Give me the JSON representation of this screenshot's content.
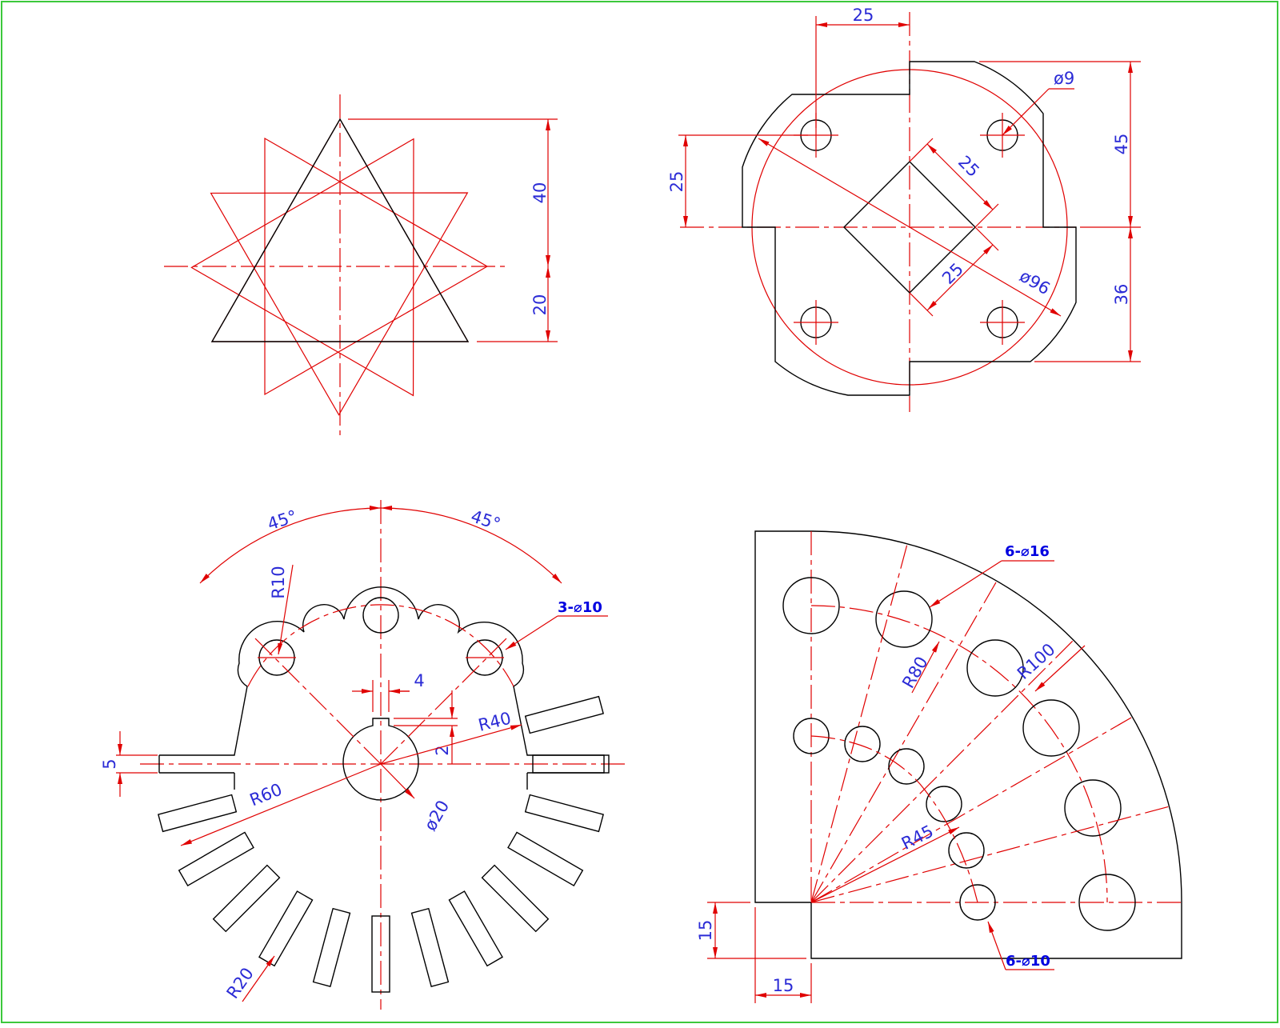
{
  "colors": {
    "border": "#3cc83c",
    "geometry": "#000000",
    "construction": "#e00000",
    "dimension_text": "#2b2bd6"
  },
  "star_view": {
    "dim_height_upper": "40",
    "dim_height_lower": "20"
  },
  "plate_view": {
    "dim_top": "25",
    "dim_left": "25",
    "dim_hole": "ø9",
    "dim_square_upper": "25",
    "dim_square_lower": "25",
    "dim_circle": "ø96",
    "dim_right_upper": "45",
    "dim_right_lower": "36"
  },
  "gear_view": {
    "angle_left": "45°",
    "angle_right": "45°",
    "radius_lobe": "R10",
    "holes_note": "3-⌀10",
    "key_width": "4",
    "key_depth": "2",
    "radius_body": "R40",
    "radius_slots": "R60",
    "bore": "ø20",
    "slot_width": "5",
    "radius_bottom": "R20"
  },
  "quadrant_view": {
    "large_holes_note": "6-⌀16",
    "radius_outer_pcd": "R100",
    "radius_mid_pcd": "R80",
    "radius_inner_pcd": "R45",
    "small_holes_note": "6-⌀10",
    "offset_vertical": "15",
    "offset_horizontal": "15"
  }
}
